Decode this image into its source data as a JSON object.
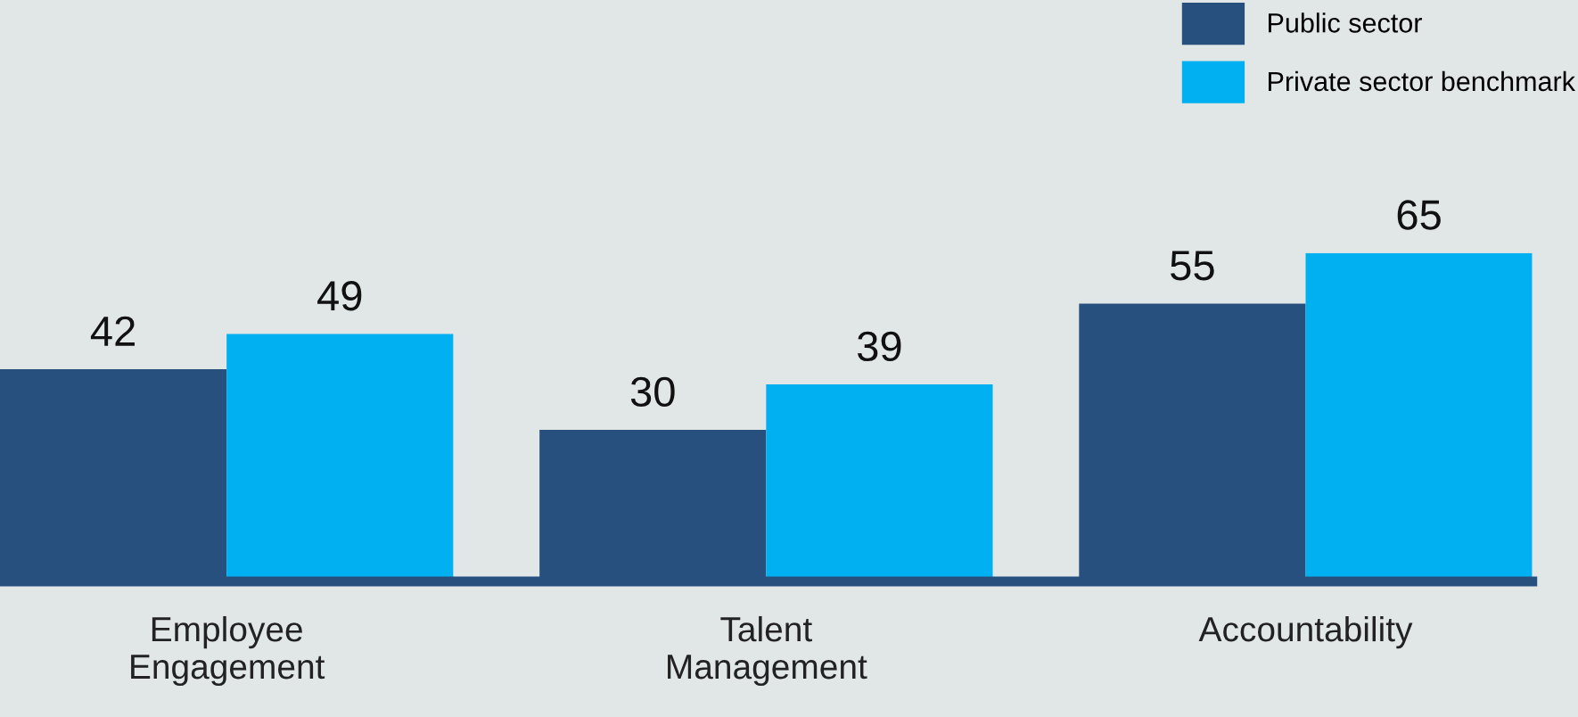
{
  "chart_data": {
    "type": "bar",
    "categories": [
      "Employee\nEngagement",
      "Talent\nManagement",
      "Accountability"
    ],
    "series": [
      {
        "name": "Public sector",
        "color": "#27507e",
        "values": [
          42,
          30,
          55
        ]
      },
      {
        "name": "Private sector benchmark",
        "color": "#00b0f0",
        "values": [
          49,
          39,
          65
        ]
      }
    ],
    "data_labels": true,
    "legend": "top right",
    "grid": false
  }
}
